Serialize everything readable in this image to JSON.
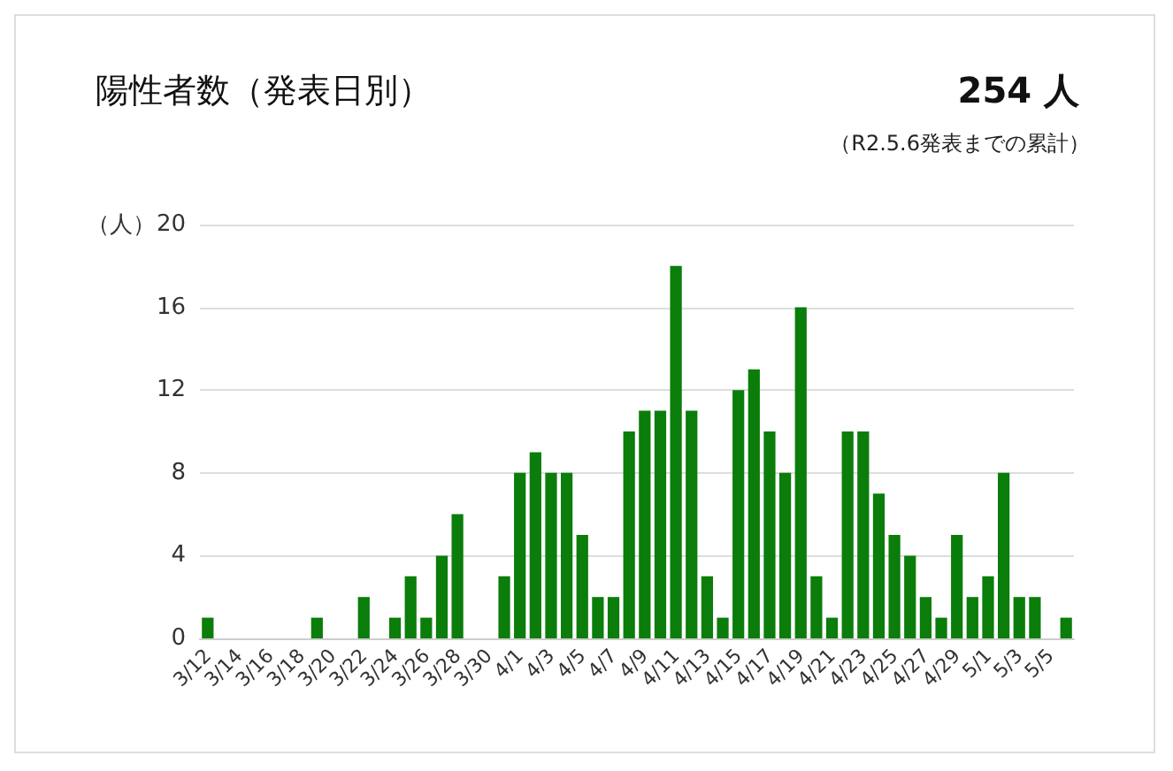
{
  "chart_data": {
    "type": "bar",
    "title": "陽性者数（発表日別）",
    "annotations": [
      "254 人",
      "（R2.5.6発表までの累計）"
    ],
    "ylabel": "（人）",
    "categories": [
      "3/12",
      null,
      "3/14",
      null,
      "3/16",
      null,
      "3/18",
      null,
      "3/20",
      null,
      "3/22",
      null,
      "3/24",
      null,
      "3/26",
      null,
      "3/28",
      null,
      "3/30",
      null,
      "4/1",
      null,
      "4/3",
      null,
      "4/5",
      null,
      "4/7",
      null,
      "4/9",
      null,
      "4/11",
      null,
      "4/13",
      null,
      "4/15",
      null,
      "4/17",
      null,
      "4/19",
      null,
      "4/21",
      null,
      "4/23",
      null,
      "4/25",
      null,
      "4/27",
      null,
      "4/29",
      null,
      "5/1",
      null,
      "5/3",
      null,
      "5/5",
      null
    ],
    "values": [
      1,
      0,
      0,
      0,
      0,
      0,
      0,
      1,
      0,
      0,
      2,
      0,
      1,
      3,
      1,
      4,
      6,
      0,
      0,
      3,
      8,
      9,
      8,
      8,
      5,
      2,
      2,
      10,
      11,
      11,
      18,
      11,
      3,
      1,
      12,
      13,
      10,
      8,
      16,
      3,
      1,
      10,
      10,
      7,
      5,
      4,
      2,
      1,
      5,
      2,
      3,
      8,
      2,
      2,
      0,
      1
    ],
    "color": "#0a7d0a",
    "ylim": [
      0,
      20
    ],
    "yticks": [
      0,
      4,
      8,
      12,
      16,
      20
    ],
    "grid": "y"
  }
}
